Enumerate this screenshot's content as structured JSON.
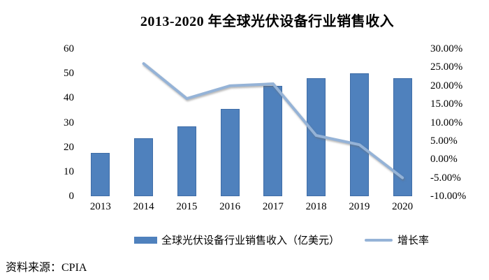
{
  "title": "2013-2020 年全球光伏设备行业销售收入",
  "source_note": "资料来源：CPIA",
  "colors": {
    "bar": "#4F81BD",
    "line": "#95B3D7",
    "text": "#000000",
    "background": "#FFFFFF"
  },
  "legend": {
    "revenue_label": "全球光伏设备行业销售收入（亿美元）",
    "growth_label": "增长率"
  },
  "chart_data": {
    "type": "bar",
    "title": "2013-2020 年全球光伏设备行业销售收入",
    "categories": [
      "2013",
      "2014",
      "2015",
      "2016",
      "2017",
      "2018",
      "2019",
      "2020"
    ],
    "series": [
      {
        "name": "全球光伏设备行业销售收入（亿美元）",
        "type": "bar",
        "axis": "left",
        "unit": "亿美元",
        "values": [
          17.5,
          23.5,
          28.5,
          35.5,
          45,
          48,
          50,
          48
        ]
      },
      {
        "name": "增长率",
        "type": "line",
        "axis": "right",
        "unit": "%",
        "values": [
          null,
          26,
          16.5,
          20,
          20.5,
          6.5,
          4,
          -5
        ]
      }
    ],
    "left_axis": {
      "min": 0,
      "max": 60,
      "step": 10,
      "ticks": [
        "0",
        "10",
        "20",
        "30",
        "40",
        "50",
        "60"
      ]
    },
    "right_axis": {
      "min": -10,
      "max": 30,
      "step": 5,
      "ticks": [
        "-10.00%",
        "-5.00%",
        "0.00%",
        "5.00%",
        "10.00%",
        "15.00%",
        "20.00%",
        "25.00%",
        "30.00%"
      ]
    },
    "grid": false,
    "axis_lines": false,
    "legend_position": "bottom",
    "xlabel": "",
    "ylabel": ""
  }
}
